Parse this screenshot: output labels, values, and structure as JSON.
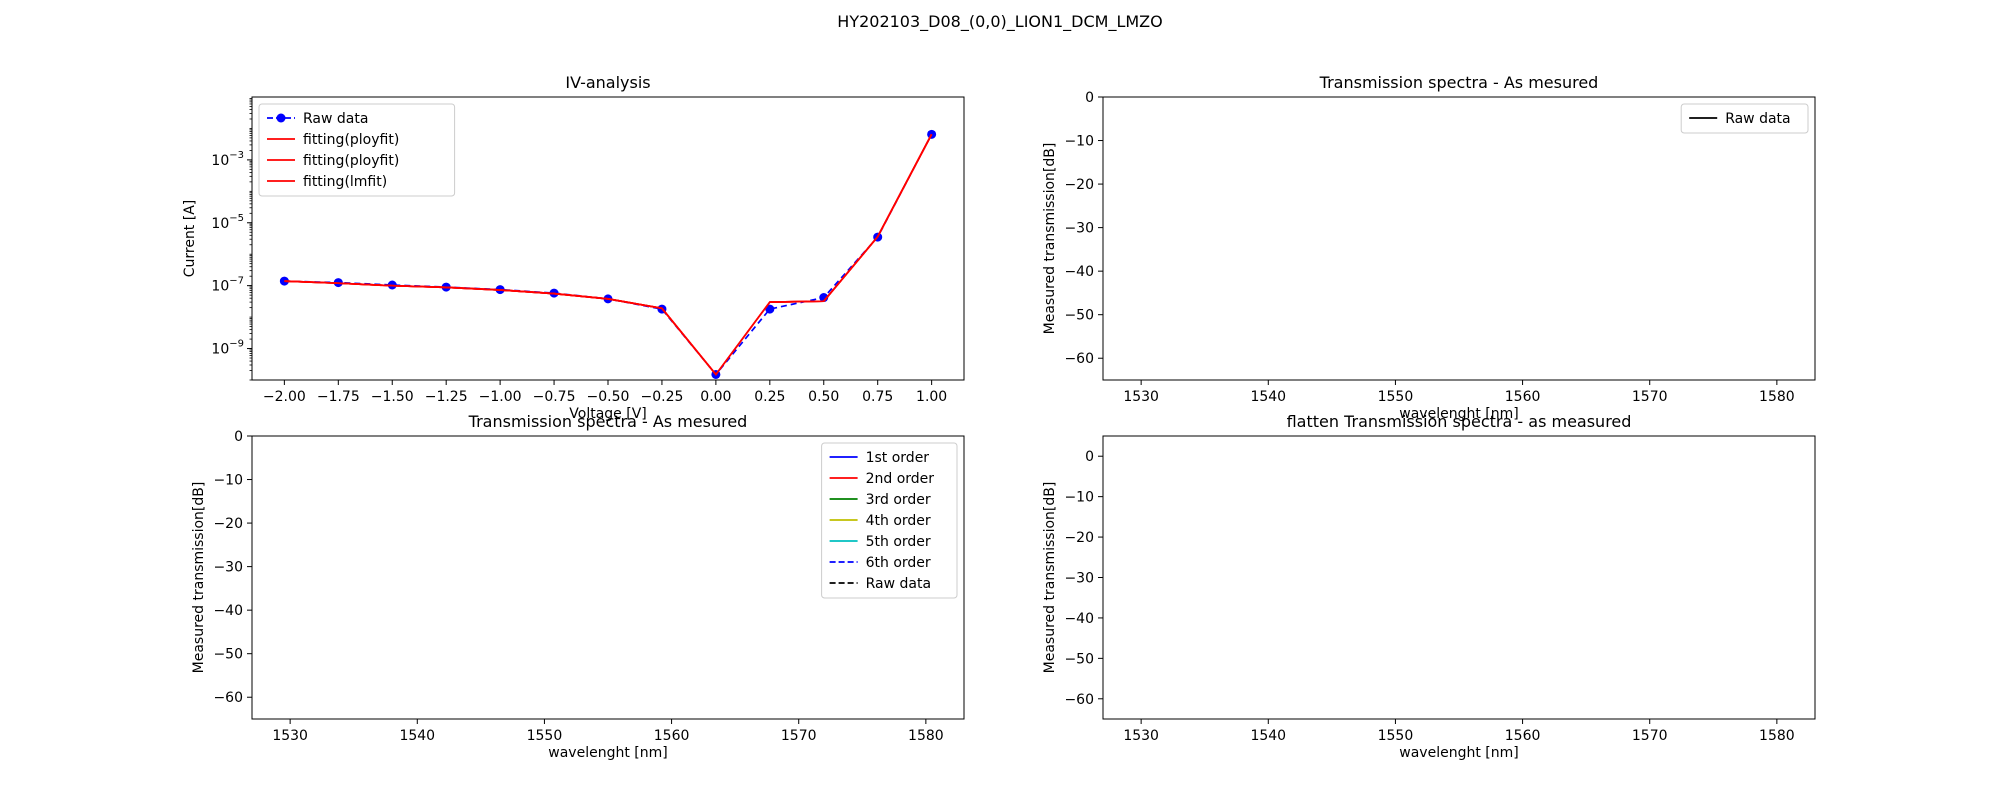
{
  "suptitle": "HY202103_D08_(0,0)_LION1_DCM_LMZO",
  "chart_data": [
    {
      "type": "line",
      "title": "IV-analysis",
      "xlabel": "Voltage [V]",
      "ylabel": "Current [A]",
      "yscale": "log",
      "xlim": [
        -2.15,
        1.15
      ],
      "ylim": [
        1e-10,
        0.1
      ],
      "xticks": [
        -2.0,
        -1.75,
        -1.5,
        -1.25,
        -1.0,
        -0.75,
        -0.5,
        -0.25,
        0.0,
        0.25,
        0.5,
        0.75,
        1.0
      ],
      "xtick_labels": [
        "−2.00",
        "−1.75",
        "−1.50",
        "−1.25",
        "−1.00",
        "−0.75",
        "−0.50",
        "−0.25",
        "0.00",
        "0.25",
        "0.50",
        "0.75",
        "1.00"
      ],
      "yticks": [
        1e-09,
        1e-07,
        1e-05,
        0.001
      ],
      "ytick_labels": [
        {
          "base": "10",
          "exp": "−9"
        },
        {
          "base": "10",
          "exp": "−7"
        },
        {
          "base": "10",
          "exp": "−5"
        },
        {
          "base": "10",
          "exp": "−3"
        }
      ],
      "legend_loc": "upper-left",
      "grid": false,
      "series": [
        {
          "name": "Raw data",
          "style": "dashed-marker",
          "color": "#0000ff",
          "x": [
            -2.0,
            -1.75,
            -1.5,
            -1.25,
            -1.0,
            -0.75,
            -0.5,
            -0.25,
            0.0,
            0.25,
            0.5,
            0.75,
            1.0
          ],
          "y": [
            1.4e-07,
            1.25e-07,
            1.05e-07,
            9e-08,
            7.5e-08,
            5.8e-08,
            3.8e-08,
            1.8e-08,
            1.5e-10,
            1.8e-08,
            4.2e-08,
            3.5e-06,
            0.0065
          ]
        },
        {
          "name": "fitting(ployfit)",
          "style": "solid",
          "color": "#ff0000",
          "x": [
            -2.0,
            -1.75,
            -1.5,
            -1.25,
            -1.0,
            -0.75,
            -0.5,
            -0.25,
            0.0
          ],
          "y": [
            1.4e-07,
            1.2e-07,
            1e-07,
            8.8e-08,
            7.3e-08,
            5.6e-08,
            3.8e-08,
            1.9e-08,
            1.5e-10
          ]
        },
        {
          "name": "fitting(ployfit)",
          "style": "solid",
          "color": "#ff0000",
          "x": [
            0.25,
            0.5,
            0.75,
            1.0
          ],
          "y": [
            3e-08,
            3.2e-08,
            3.6e-06,
            0.0065
          ]
        },
        {
          "name": "fitting(lmfit)",
          "style": "solid",
          "color": "#ff0000",
          "x": [
            -2.0,
            -1.75,
            -1.5,
            -1.25,
            -1.0,
            -0.75,
            -0.5,
            -0.25,
            0.0,
            0.25,
            0.5,
            0.75,
            1.0
          ],
          "y": [
            1.4e-07,
            1.2e-07,
            1e-07,
            8.8e-08,
            7.3e-08,
            5.6e-08,
            3.8e-08,
            1.9e-08,
            1.5e-10,
            3e-08,
            3.2e-08,
            3.6e-06,
            0.0065
          ]
        }
      ]
    },
    {
      "type": "line",
      "title": "Transmission spectra - As mesured",
      "xlabel": "wavelenght [nm]",
      "ylabel": "Measured transmission[dB]",
      "xlim": [
        1527,
        1583
      ],
      "ylim": [
        -65,
        0
      ],
      "xticks": [
        1530,
        1540,
        1550,
        1560,
        1570,
        1580
      ],
      "yticks": [
        0,
        -10,
        -20,
        -30,
        -40,
        -50,
        -60
      ],
      "legend_loc": "upper-right",
      "grid": false,
      "series": [
        {
          "name": "Raw data",
          "style": "solid",
          "color": "#000000",
          "x": [],
          "y": []
        }
      ]
    },
    {
      "type": "line",
      "title": "Transmission spectra - As mesured",
      "xlabel": "wavelenght [nm]",
      "ylabel": "Measured transmission[dB]",
      "xlim": [
        1527,
        1583
      ],
      "ylim": [
        -65,
        0
      ],
      "xticks": [
        1530,
        1540,
        1550,
        1560,
        1570,
        1580
      ],
      "yticks": [
        0,
        -10,
        -20,
        -30,
        -40,
        -50,
        -60
      ],
      "legend_loc": "upper-right",
      "grid": false,
      "series": [
        {
          "name": "1st order",
          "style": "solid",
          "color": "#0000ff",
          "x": [],
          "y": []
        },
        {
          "name": "2nd order",
          "style": "solid",
          "color": "#ff0000",
          "x": [],
          "y": []
        },
        {
          "name": "3rd order",
          "style": "solid",
          "color": "#008000",
          "x": [],
          "y": []
        },
        {
          "name": "4th order",
          "style": "solid",
          "color": "#bfbf00",
          "x": [],
          "y": []
        },
        {
          "name": "5th order",
          "style": "solid",
          "color": "#00bfbf",
          "x": [],
          "y": []
        },
        {
          "name": "6th order",
          "style": "dashed",
          "color": "#0000ff",
          "x": [],
          "y": []
        },
        {
          "name": "Raw data",
          "style": "dashed",
          "color": "#000000",
          "x": [],
          "y": []
        }
      ]
    },
    {
      "type": "line",
      "title": "flatten Transmission spectra - as measured",
      "xlabel": "wavelenght [nm]",
      "ylabel": "Measured transmission[dB]",
      "xlim": [
        1527,
        1583
      ],
      "ylim": [
        -65,
        5
      ],
      "xticks": [
        1530,
        1540,
        1550,
        1560,
        1570,
        1580
      ],
      "yticks": [
        0,
        -10,
        -20,
        -30,
        -40,
        -50,
        -60
      ],
      "grid": false,
      "series": []
    }
  ]
}
